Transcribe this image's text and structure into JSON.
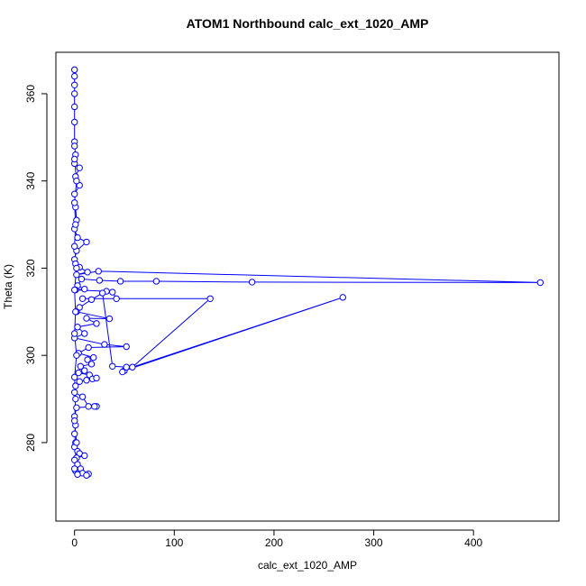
{
  "chart_data": {
    "type": "line",
    "title": "ATOM1 Northbound calc_ext_1020_AMP",
    "x_label": "calc_ext_1020_AMP",
    "y_label": "Theta (K)",
    "xlim": [
      -18.7,
      485.7
    ],
    "ylim": [
      262,
      369.5
    ],
    "xticks": [
      0,
      100,
      200,
      300,
      400
    ],
    "yticks": [
      280,
      300,
      320,
      340,
      360
    ],
    "series": [
      {
        "color": "#0000ff",
        "x": [
          0,
          0,
          0,
          0,
          0,
          0,
          0,
          0,
          1,
          0,
          5,
          1,
          5,
          0,
          1,
          2,
          0,
          3,
          12,
          2,
          0,
          1,
          5,
          13,
          2,
          24,
          467,
          178,
          82,
          46,
          25,
          7,
          3,
          10,
          1,
          32,
          38,
          42,
          8,
          136,
          58,
          269,
          50,
          48,
          52,
          38,
          28,
          17,
          5,
          2,
          35,
          12,
          22,
          3,
          10,
          0,
          30,
          52,
          14,
          4,
          19,
          13,
          17,
          6,
          10,
          4,
          15,
          18,
          22,
          12,
          5,
          1,
          0,
          8,
          14,
          22,
          20,
          2,
          0,
          1,
          0,
          1,
          0,
          3,
          5,
          10,
          2,
          0,
          3,
          6,
          1,
          8,
          14,
          12,
          3,
          0,
          2,
          0,
          1,
          0,
          2,
          0,
          1,
          0,
          2,
          0,
          1,
          0,
          2,
          0
        ],
        "values": [
          365.5,
          364,
          362,
          360,
          357,
          353.5,
          349,
          348,
          346,
          344,
          343,
          341,
          339,
          337,
          334,
          331,
          329,
          327,
          326,
          324,
          322,
          321,
          320.2,
          319.1,
          318.5,
          319.3,
          316.7,
          316.8,
          317,
          317,
          317.2,
          317.5,
          316,
          315.2,
          315,
          314.7,
          314.5,
          313,
          313,
          313,
          297.3,
          313.3,
          296.5,
          296.2,
          297.3,
          297.5,
          314.3,
          312.8,
          311,
          310,
          308.4,
          308.5,
          307.3,
          306.5,
          305,
          304,
          302.5,
          302,
          301.8,
          300.5,
          299.5,
          299,
          298,
          297.5,
          296.5,
          296,
          295.5,
          294.6,
          294.8,
          294.3,
          294,
          293,
          291.5,
          290.5,
          288.3,
          288.3,
          288.3,
          288,
          286,
          284,
          282,
          280,
          279,
          278,
          277.5,
          277,
          276.5,
          276,
          275,
          274,
          273.5,
          273,
          272.8,
          272.5,
          272.7,
          274,
          280,
          285,
          290,
          295,
          300,
          305,
          310,
          315,
          320,
          325,
          330,
          335,
          340,
          345
        ]
      }
    ]
  }
}
